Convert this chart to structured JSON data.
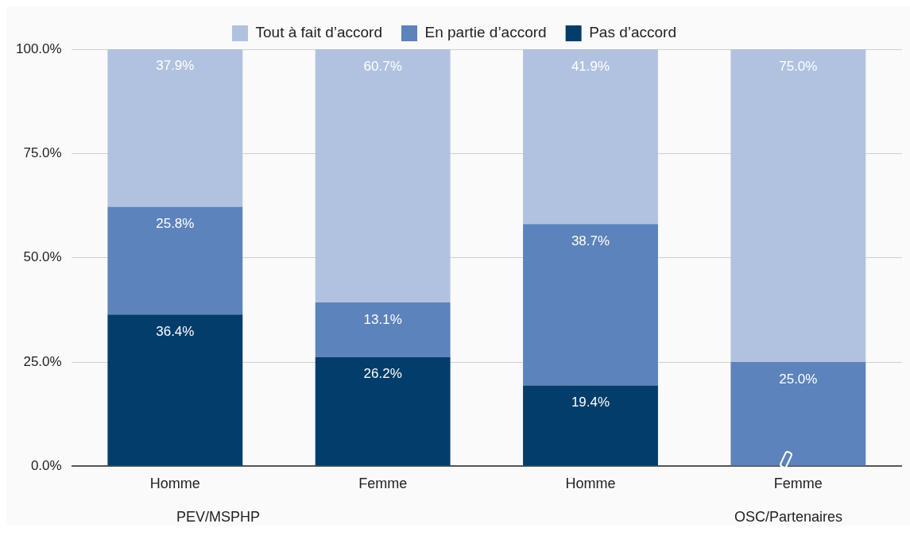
{
  "chart_data": {
    "type": "bar",
    "stacked": true,
    "categories": [
      "Homme",
      "Femme",
      "Homme",
      "Femme"
    ],
    "series": [
      {
        "name": "Pas d’accord",
        "color": "#033d6b",
        "values": [
          36.4,
          26.2,
          19.4,
          null
        ],
        "value_labels": [
          "36.4%",
          "26.2%",
          "19.4%",
          null
        ]
      },
      {
        "name": "En partie d’accord",
        "color": "#5c83bb",
        "values": [
          25.8,
          13.1,
          38.7,
          25.0
        ],
        "value_labels": [
          "25.8%",
          "13.1%",
          "38.7%",
          "25.0%"
        ]
      },
      {
        "name": "Tout à fait d’accord",
        "color": "#b1c2e0",
        "values": [
          37.9,
          60.7,
          41.9,
          75.0
        ],
        "value_labels": [
          "37.9%",
          "60.7%",
          "41.9%",
          "75.0%"
        ]
      }
    ],
    "ylim": [
      0,
      100
    ],
    "yticks": [
      {
        "value": 0,
        "label": "0.0%"
      },
      {
        "value": 25,
        "label": "25.0%"
      },
      {
        "value": 50,
        "label": "50.0%"
      },
      {
        "value": 75,
        "label": "75.0%"
      },
      {
        "value": 100,
        "label": "100.0%"
      }
    ],
    "grid": "y",
    "legend": "top",
    "annotations": [
      "PEV/MSPHP",
      "OSC/Partenaires"
    ]
  }
}
